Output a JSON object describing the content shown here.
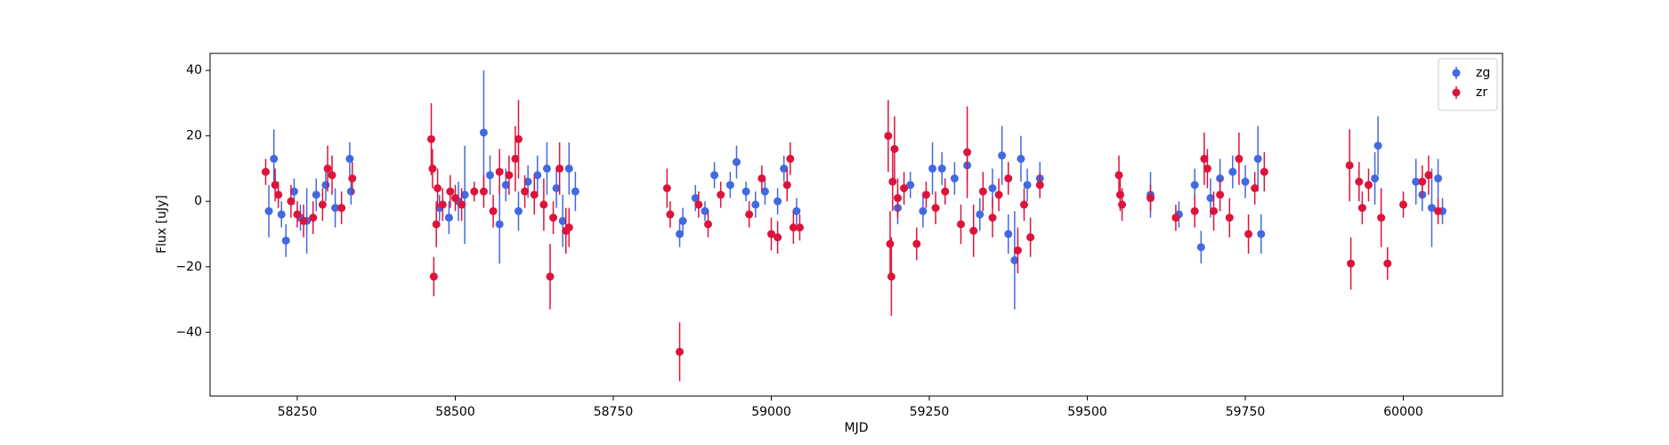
{
  "chart_data": {
    "type": "errorbar_scatter",
    "x_label": "MJD",
    "y_label": "Flux [uJy]",
    "xlim": [
      58112,
      60157
    ],
    "ylim": [
      -59.5,
      45.2
    ],
    "xticks": [
      58250,
      58500,
      58750,
      59000,
      59250,
      59500,
      59750,
      60000
    ],
    "yticks": [
      {
        "value": -40,
        "label": "−40"
      },
      {
        "value": -20,
        "label": "−20"
      },
      0,
      20,
      40
    ],
    "legend": "upper right",
    "series": [
      {
        "name": "zg",
        "color": "#4169e1",
        "x": [
          58205,
          58213,
          58225,
          58232,
          58245,
          58255,
          58265,
          58280,
          58295,
          58310,
          58333,
          58335,
          58475,
          58490,
          58505,
          58515,
          58545,
          58555,
          58570,
          58580,
          58600,
          58615,
          58630,
          58645,
          58660,
          58670,
          58680,
          58690,
          58855,
          58860,
          58880,
          58895,
          58910,
          58935,
          58945,
          58960,
          58975,
          58990,
          59010,
          59020,
          59040,
          59200,
          59220,
          59240,
          59255,
          59270,
          59290,
          59310,
          59330,
          59350,
          59365,
          59375,
          59385,
          59395,
          59405,
          59425,
          59600,
          59645,
          59670,
          59680,
          59695,
          59710,
          59730,
          59750,
          59770,
          59775,
          59955,
          59960,
          60020,
          60030,
          60045,
          60055,
          60062
        ],
        "values": [
          -3,
          13,
          -4,
          -12,
          3,
          -5,
          -6,
          2,
          5,
          -2,
          13,
          3,
          -2,
          -5,
          0,
          2,
          21,
          8,
          -7,
          5,
          -3,
          6,
          8,
          10,
          4,
          -6,
          10,
          3,
          -10,
          -6,
          1,
          -3,
          8,
          5,
          12,
          3,
          -1,
          3,
          0,
          10,
          -3,
          -2,
          5,
          -3,
          10,
          10,
          7,
          11,
          -4,
          4,
          14,
          -10,
          -18,
          13,
          5,
          7,
          2,
          -4,
          5,
          -14,
          1,
          7,
          9,
          6,
          13,
          -10,
          7,
          17,
          6,
          2,
          -2,
          7,
          -3
        ],
        "errors": [
          8,
          9,
          4,
          5,
          4,
          4,
          10,
          5,
          5,
          6,
          5,
          4,
          4,
          5,
          6,
          15,
          19,
          6,
          12,
          5,
          6,
          5,
          6,
          8,
          6,
          8,
          8,
          6,
          4,
          4,
          4,
          3,
          4,
          4,
          5,
          3,
          4,
          4,
          4,
          4,
          4,
          5,
          4,
          5,
          8,
          5,
          5,
          5,
          5,
          6,
          9,
          6,
          15,
          7,
          5,
          5,
          7,
          4,
          5,
          5,
          6,
          6,
          5,
          5,
          10,
          6,
          8,
          9,
          7,
          5,
          12,
          6,
          4
        ]
      },
      {
        "name": "zr",
        "color": "#dc143c",
        "x": [
          58200,
          58215,
          58220,
          58240,
          58250,
          58260,
          58275,
          58290,
          58298,
          58305,
          58320,
          58337,
          58462,
          58464,
          58466,
          58470,
          58472,
          58480,
          58492,
          58500,
          58510,
          58530,
          58545,
          58560,
          58570,
          58585,
          58595,
          58600,
          58610,
          58625,
          58640,
          58650,
          58655,
          58665,
          58675,
          58680,
          58835,
          58840,
          58855,
          58885,
          58900,
          58920,
          58965,
          58985,
          59000,
          59010,
          59025,
          59030,
          59035,
          59045,
          59185,
          59188,
          59190,
          59192,
          59195,
          59200,
          59210,
          59230,
          59245,
          59260,
          59275,
          59300,
          59310,
          59320,
          59335,
          59350,
          59360,
          59375,
          59390,
          59400,
          59410,
          59425,
          59550,
          59552,
          59555,
          59600,
          59640,
          59670,
          59685,
          59690,
          59700,
          59710,
          59725,
          59740,
          59755,
          59765,
          59780,
          59915,
          59917,
          59930,
          59935,
          59945,
          59965,
          59975,
          60000,
          60030,
          60040,
          60055
        ],
        "values": [
          9,
          5,
          2,
          0,
          -4,
          -6,
          -5,
          -1,
          10,
          8,
          -2,
          7,
          19,
          10,
          -23,
          -7,
          4,
          -1,
          3,
          1,
          -1,
          3,
          3,
          -3,
          9,
          8,
          13,
          19,
          3,
          2,
          -1,
          -23,
          -5,
          10,
          -9,
          -8,
          4,
          -4,
          -46,
          -1,
          -7,
          2,
          -4,
          7,
          -10,
          -11,
          5,
          13,
          -8,
          -8,
          20,
          -13,
          -23,
          6,
          16,
          1,
          4,
          -13,
          2,
          -2,
          3,
          -7,
          15,
          -9,
          3,
          -5,
          2,
          7,
          -15,
          -1,
          -11,
          5,
          8,
          2,
          -1,
          1,
          -5,
          -3,
          13,
          10,
          -3,
          2,
          -5,
          13,
          -10,
          4,
          9,
          11,
          -19,
          6,
          -2,
          5,
          -5,
          -19,
          -1,
          6,
          8,
          -3
        ],
        "errors": [
          4,
          5,
          4,
          5,
          4,
          5,
          5,
          5,
          7,
          6,
          5,
          5,
          11,
          6,
          6,
          7,
          6,
          5,
          5,
          4,
          5,
          3,
          5,
          5,
          7,
          6,
          10,
          12,
          5,
          6,
          8,
          10,
          5,
          8,
          7,
          6,
          6,
          4,
          9,
          4,
          4,
          4,
          4,
          4,
          5,
          5,
          5,
          5,
          5,
          4,
          11,
          10,
          12,
          9,
          10,
          6,
          5,
          5,
          4,
          5,
          4,
          6,
          14,
          8,
          6,
          6,
          5,
          5,
          7,
          5,
          6,
          4,
          6,
          5,
          5,
          4,
          4,
          5,
          8,
          6,
          6,
          5,
          6,
          8,
          6,
          5,
          6,
          11,
          8,
          6,
          5,
          5,
          9,
          5,
          4,
          5,
          6,
          4
        ]
      }
    ]
  }
}
